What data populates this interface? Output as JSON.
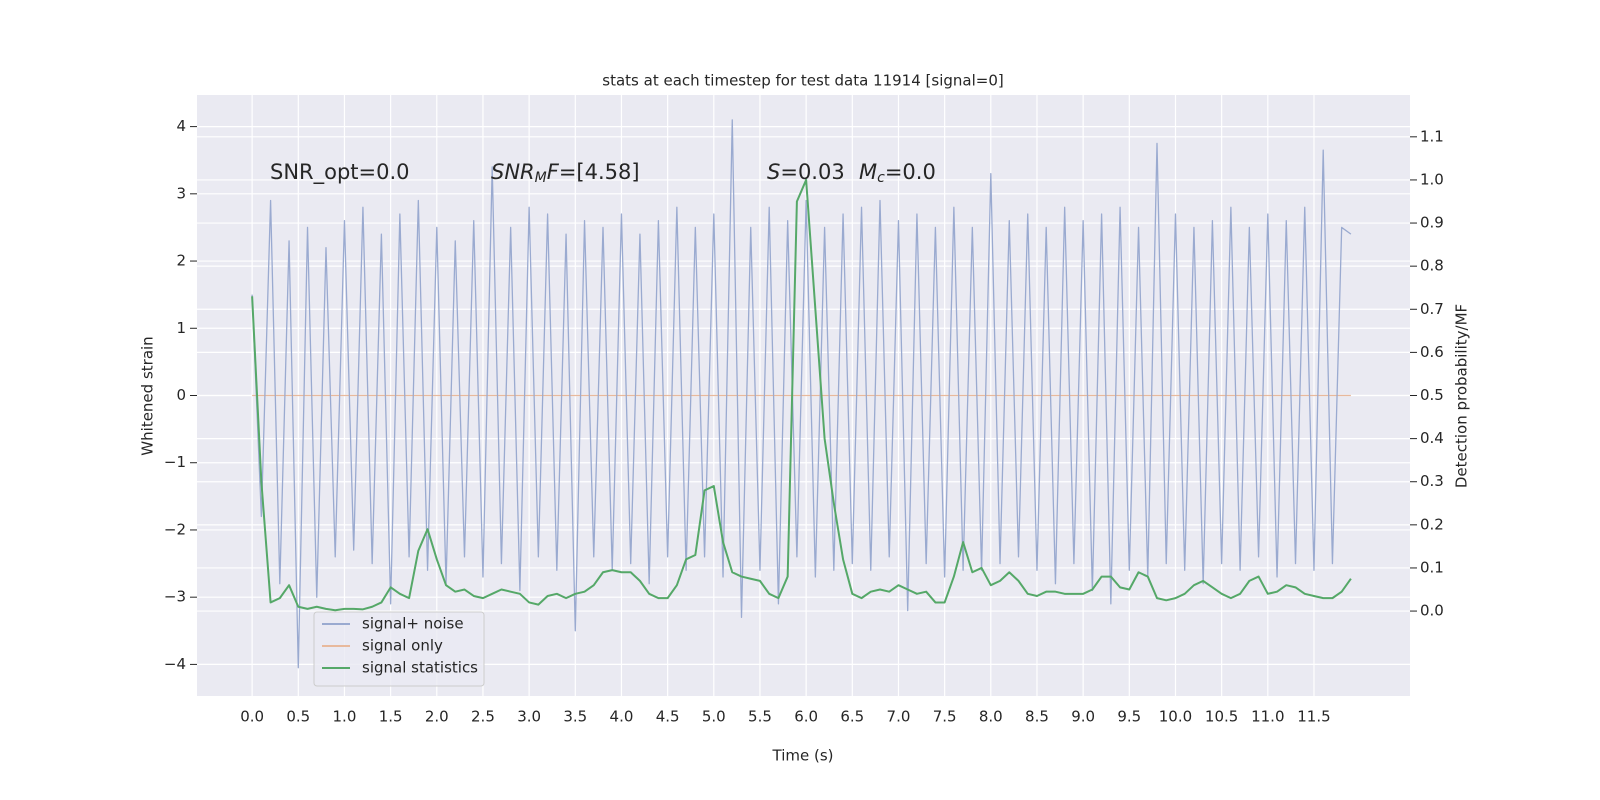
{
  "chart_data": {
    "type": "line",
    "title": "stats at each timestep for test data 11914 [signal=0]",
    "xlabel": "Time (s)",
    "ylabel": "Whitened strain",
    "y2label": "Detection probability/MF",
    "annotations": [
      [
        "SNR_opt=0.0"
      ],
      [
        "SNR",
        "M",
        "F",
        "=[4.58]"
      ],
      [
        "S",
        "=0.03"
      ],
      [
        "M",
        "c",
        "=0.0"
      ]
    ],
    "grid": true,
    "legend": "lower left",
    "xlim": [
      -0.597,
      12.54
    ],
    "ylim": [
      -4.47,
      4.47
    ],
    "y2lim": [
      -0.197,
      1.197
    ],
    "xticks": [
      {
        "value": 0,
        "label": "0.0"
      },
      {
        "value": 0.5,
        "label": "0.5"
      },
      {
        "value": 1,
        "label": "1.0"
      },
      {
        "value": 1.5,
        "label": "1.5"
      },
      {
        "value": 2,
        "label": "2.0"
      },
      {
        "value": 2.5,
        "label": "2.5"
      },
      {
        "value": 3,
        "label": "3.0"
      },
      {
        "value": 3.5,
        "label": "3.5"
      },
      {
        "value": 4,
        "label": "4.0"
      },
      {
        "value": 4.5,
        "label": "4.5"
      },
      {
        "value": 5,
        "label": "5.0"
      },
      {
        "value": 5.5,
        "label": "5.5"
      },
      {
        "value": 6,
        "label": "6.0"
      },
      {
        "value": 6.5,
        "label": "6.5"
      },
      {
        "value": 7,
        "label": "7.0"
      },
      {
        "value": 7.5,
        "label": "7.5"
      },
      {
        "value": 8,
        "label": "8.0"
      },
      {
        "value": 8.5,
        "label": "8.5"
      },
      {
        "value": 9,
        "label": "9.0"
      },
      {
        "value": 9.5,
        "label": "9.5"
      },
      {
        "value": 10,
        "label": "10.0"
      },
      {
        "value": 10.5,
        "label": "10.5"
      },
      {
        "value": 11,
        "label": "11.0"
      },
      {
        "value": 11.5,
        "label": "11.5"
      }
    ],
    "yticks": [
      {
        "value": -4,
        "label": "−4"
      },
      {
        "value": -3,
        "label": "−3"
      },
      {
        "value": -2,
        "label": "−2"
      },
      {
        "value": -1,
        "label": "−1"
      },
      0,
      1,
      2,
      3,
      4
    ],
    "y2ticks": [
      {
        "value": 0,
        "label": "0.0"
      },
      {
        "value": 0.1,
        "label": "0.1"
      },
      {
        "value": 0.2,
        "label": "0.2"
      },
      {
        "value": 0.3,
        "label": "0.3"
      },
      {
        "value": 0.4,
        "label": "0.4"
      },
      {
        "value": 0.5,
        "label": "0.5"
      },
      {
        "value": 0.6,
        "label": "0.6"
      },
      {
        "value": 0.7,
        "label": "0.7"
      },
      {
        "value": 0.8,
        "label": "0.8"
      },
      {
        "value": 0.9,
        "label": "0.9"
      },
      {
        "value": 1,
        "label": "1.0"
      },
      {
        "value": 1.1,
        "label": "1.1"
      }
    ],
    "x": [
      0,
      0.1,
      0.2,
      0.3,
      0.4,
      0.5,
      0.6,
      0.7,
      0.8,
      0.9,
      1,
      1.1,
      1.2,
      1.3,
      1.4,
      1.5,
      1.6,
      1.7,
      1.8,
      1.9,
      2,
      2.1,
      2.2,
      2.3,
      2.4,
      2.5,
      2.6,
      2.7,
      2.8,
      2.9,
      3,
      3.1,
      3.2,
      3.3,
      3.4,
      3.5,
      3.6,
      3.7,
      3.8,
      3.9,
      4,
      4.1,
      4.2,
      4.3,
      4.4,
      4.5,
      4.6,
      4.7,
      4.8,
      4.9,
      5,
      5.1,
      5.2,
      5.3,
      5.4,
      5.5,
      5.6,
      5.7,
      5.8,
      5.9,
      6,
      6.1,
      6.2,
      6.3,
      6.4,
      6.5,
      6.6,
      6.7,
      6.8,
      6.9,
      7,
      7.1,
      7.2,
      7.3,
      7.4,
      7.5,
      7.6,
      7.7,
      7.8,
      7.9,
      8,
      8.1,
      8.2,
      8.3,
      8.4,
      8.5,
      8.6,
      8.7,
      8.8,
      8.9,
      9,
      9.1,
      9.2,
      9.3,
      9.4,
      9.5,
      9.6,
      9.7,
      9.8,
      9.9,
      10,
      10.1,
      10.2,
      10.3,
      10.4,
      10.5,
      10.6,
      10.7,
      10.8,
      10.9,
      11,
      11.1,
      11.2,
      11.3,
      11.4,
      11.5,
      11.6,
      11.7,
      11.8,
      11.9
    ],
    "series": [
      {
        "name": "signal+ noise",
        "color": "#9aaad0",
        "values": [
          1.5,
          -1.8,
          2.9,
          -2.8,
          2.3,
          -4.05,
          2.5,
          -3.0,
          2.2,
          -2.4,
          2.6,
          -2.3,
          2.8,
          -2.5,
          2.4,
          -3.1,
          2.7,
          -2.4,
          2.9,
          -2.6,
          2.5,
          -2.8,
          2.3,
          -2.4,
          2.6,
          -2.7,
          3.4,
          -2.5,
          2.5,
          -2.9,
          2.8,
          -2.4,
          2.7,
          -2.6,
          2.4,
          -3.5,
          2.6,
          -2.4,
          2.5,
          -2.6,
          2.7,
          -2.5,
          2.4,
          -2.8,
          2.6,
          -2.4,
          2.8,
          -2.6,
          2.5,
          -2.4,
          2.7,
          -2.7,
          4.1,
          -3.3,
          2.5,
          -2.6,
          2.8,
          -3.1,
          2.6,
          -2.4,
          2.9,
          -2.7,
          2.5,
          -2.6,
          2.7,
          -2.5,
          2.8,
          -2.6,
          2.9,
          -2.4,
          2.6,
          -3.2,
          2.7,
          -2.5,
          2.5,
          -2.7,
          2.8,
          -2.6,
          2.5,
          -2.6,
          3.3,
          -2.5,
          2.6,
          -2.4,
          2.7,
          -2.6,
          2.5,
          -2.8,
          2.8,
          -2.5,
          2.6,
          -2.9,
          2.7,
          -3.1,
          2.8,
          -2.6,
          2.5,
          -2.7,
          3.75,
          -2.5,
          2.7,
          -2.6,
          2.5,
          -2.8,
          2.6,
          -2.5,
          2.8,
          -2.6,
          2.5,
          -2.4,
          2.7,
          -2.7,
          2.6,
          -2.5,
          2.8,
          -2.6,
          3.65,
          -2.5,
          2.5,
          2.4
        ]
      },
      {
        "name": "signal only",
        "color": "#e8b99c",
        "values": [
          0,
          0,
          0,
          0,
          0,
          0,
          0,
          0,
          0,
          0,
          0,
          0,
          0,
          0,
          0,
          0,
          0,
          0,
          0,
          0,
          0,
          0,
          0,
          0,
          0,
          0,
          0,
          0,
          0,
          0,
          0,
          0,
          0,
          0,
          0,
          0,
          0,
          0,
          0,
          0,
          0,
          0,
          0,
          0,
          0,
          0,
          0,
          0,
          0,
          0,
          0,
          0,
          0,
          0,
          0,
          0,
          0,
          0,
          0,
          0,
          0,
          0,
          0,
          0,
          0,
          0,
          0,
          0,
          0,
          0,
          0,
          0,
          0,
          0,
          0,
          0,
          0,
          0,
          0,
          0,
          0,
          0,
          0,
          0,
          0,
          0,
          0,
          0,
          0,
          0,
          0,
          0,
          0,
          0,
          0,
          0,
          0,
          0,
          0,
          0,
          0,
          0,
          0,
          0,
          0,
          0,
          0,
          0,
          0,
          0,
          0,
          0,
          0,
          0,
          0,
          0,
          0,
          0,
          0,
          0
        ]
      },
      {
        "name": "signal statistics",
        "color": "#55a868",
        "axis": "y2",
        "values": [
          0.73,
          0.3,
          0.02,
          0.03,
          0.06,
          0.01,
          0.005,
          0.01,
          0.005,
          0.002,
          0.005,
          0.005,
          0.004,
          0.01,
          0.02,
          0.055,
          0.04,
          0.03,
          0.14,
          0.19,
          0.12,
          0.06,
          0.045,
          0.05,
          0.035,
          0.03,
          0.04,
          0.05,
          0.045,
          0.04,
          0.02,
          0.015,
          0.035,
          0.04,
          0.03,
          0.04,
          0.045,
          0.06,
          0.09,
          0.095,
          0.09,
          0.09,
          0.07,
          0.04,
          0.03,
          0.03,
          0.06,
          0.12,
          0.13,
          0.28,
          0.29,
          0.16,
          0.09,
          0.08,
          0.075,
          0.07,
          0.04,
          0.03,
          0.08,
          0.95,
          1.0,
          0.7,
          0.4,
          0.25,
          0.12,
          0.04,
          0.03,
          0.045,
          0.05,
          0.045,
          0.06,
          0.05,
          0.04,
          0.045,
          0.02,
          0.02,
          0.08,
          0.16,
          0.09,
          0.1,
          0.06,
          0.07,
          0.09,
          0.07,
          0.04,
          0.035,
          0.045,
          0.045,
          0.04,
          0.04,
          0.04,
          0.05,
          0.08,
          0.08,
          0.055,
          0.05,
          0.09,
          0.08,
          0.03,
          0.025,
          0.03,
          0.04,
          0.06,
          0.07,
          0.055,
          0.04,
          0.03,
          0.04,
          0.07,
          0.08,
          0.04,
          0.045,
          0.06,
          0.055,
          0.04,
          0.035,
          0.03,
          0.03,
          0.045,
          0.075
        ]
      }
    ]
  }
}
